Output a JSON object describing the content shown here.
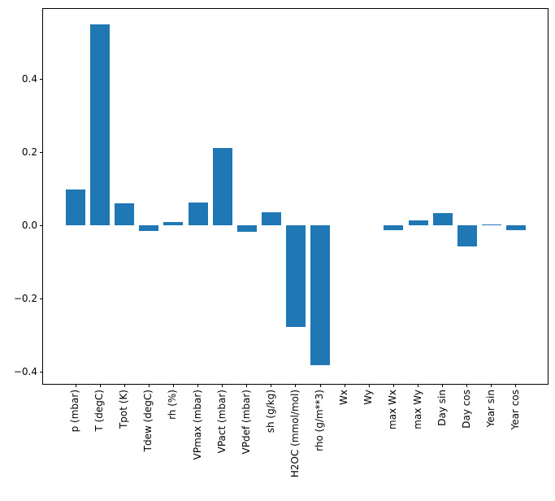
{
  "figure": {
    "background": "#ffffff",
    "title": ""
  },
  "chart_data": {
    "type": "bar",
    "title": "",
    "xlabel": "",
    "ylabel": "",
    "categories": [
      "p (mbar)",
      "T (degC)",
      "Tpot (K)",
      "Tdew (degC)",
      "rh (%)",
      "VPmax (mbar)",
      "VPact (mbar)",
      "VPdef (mbar)",
      "sh (g/kg)",
      "H2OC (mmol/mol)",
      "rho (g/m**3)",
      "Wx",
      "Wy",
      "max Wx",
      "max Wy",
      "Day sin",
      "Day cos",
      "Year sin",
      "Year cos"
    ],
    "values": [
      0.098,
      0.549,
      0.059,
      -0.016,
      0.009,
      0.062,
      0.211,
      -0.018,
      0.036,
      -0.278,
      -0.382,
      0.0,
      0.0,
      -0.014,
      0.013,
      0.033,
      -0.058,
      0.003,
      -0.014
    ],
    "bar_color": "#1f77b4",
    "axis_color": "#000000",
    "ylim": [
      -0.433,
      0.591
    ],
    "y_ticks": [
      0.4,
      0.2,
      0.0,
      -0.2,
      -0.4
    ],
    "y_tick_labels": [
      "0.4",
      "0.2",
      "0.0",
      "−0.2",
      "−0.4"
    ],
    "grid": false,
    "legend": null
  }
}
